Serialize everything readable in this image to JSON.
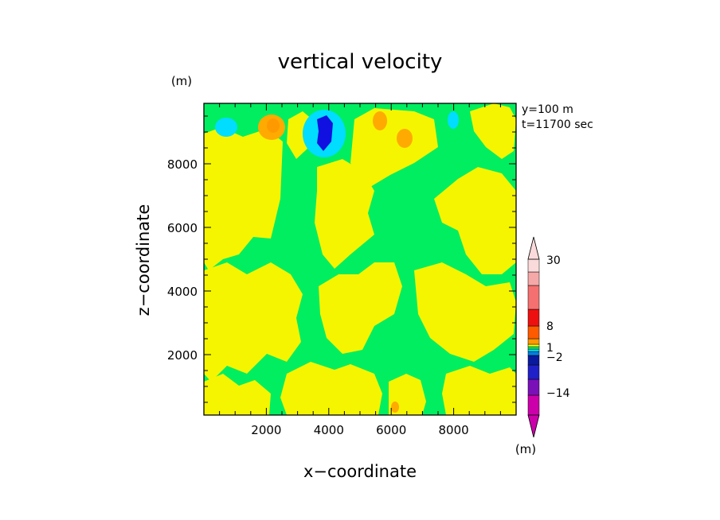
{
  "chart_data": {
    "type": "heatmap",
    "title": "vertical velocity",
    "xlabel": "x−coordinate",
    "ylabel": "z−coordinate",
    "y_unit": "(m)",
    "x_unit": "(m)",
    "annotations": [
      "y=100 m",
      "t=11700 sec"
    ],
    "xlim": [
      0,
      10000
    ],
    "ylim": [
      100,
      9900
    ],
    "x_ticks": [
      2000,
      4000,
      6000,
      8000
    ],
    "y_ticks": [
      2000,
      4000,
      6000,
      8000
    ],
    "colorbar": {
      "labels": [
        {
          "text": "30",
          "level": 30
        },
        {
          "text": "8",
          "level": 8
        },
        {
          "text": "1",
          "level": 1
        },
        {
          "text": "−2",
          "level": -2
        },
        {
          "text": "−14",
          "level": -14
        }
      ],
      "colors": [
        "#cc00aa",
        "#7a10b8",
        "#2020c8",
        "#0a1a9e",
        "#0080e0",
        "#00e5ff",
        "#00ff55",
        "#ffff00",
        "#ff9900",
        "#ff5a00",
        "#ee1010",
        "#f57070",
        "#f5a8a8",
        "#fadada"
      ]
    },
    "field_colors": {
      "background": "#00ee60",
      "positive_weak": "#f5f500",
      "positive_mid": "#ffaa00",
      "negative_weak": "#00ddff",
      "negative_strong": "#1010e0"
    },
    "features": [
      {
        "kind": "updraft",
        "x": 2300,
        "z": 9100,
        "value": 8
      },
      {
        "kind": "downdraft",
        "x": 3900,
        "z": 9200,
        "value": -14
      },
      {
        "kind": "downdraft",
        "x": 700,
        "z": 9200,
        "value": -2
      },
      {
        "kind": "updraft",
        "x": 5400,
        "z": 9350,
        "value": 1
      },
      {
        "kind": "updraft",
        "x": 6300,
        "z": 8800,
        "value": 1
      },
      {
        "kind": "downdraft",
        "x": 7900,
        "z": 9350,
        "value": -2
      },
      {
        "kind": "updraft",
        "x": 5900,
        "z": 200,
        "value": 1
      }
    ]
  }
}
